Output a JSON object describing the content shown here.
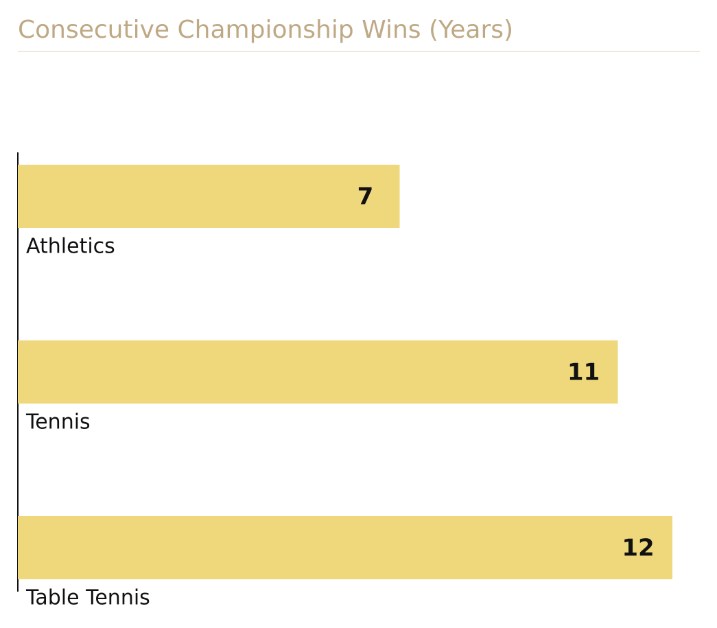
{
  "chart_data": {
    "type": "bar",
    "orientation": "horizontal",
    "title": "Consecutive Championship Wins (Years)",
    "categories": [
      "Athletics",
      "Tennis",
      "Table Tennis"
    ],
    "values": [
      7,
      11,
      12
    ],
    "color": "#efd87c",
    "xlim": [
      0,
      12
    ]
  }
}
